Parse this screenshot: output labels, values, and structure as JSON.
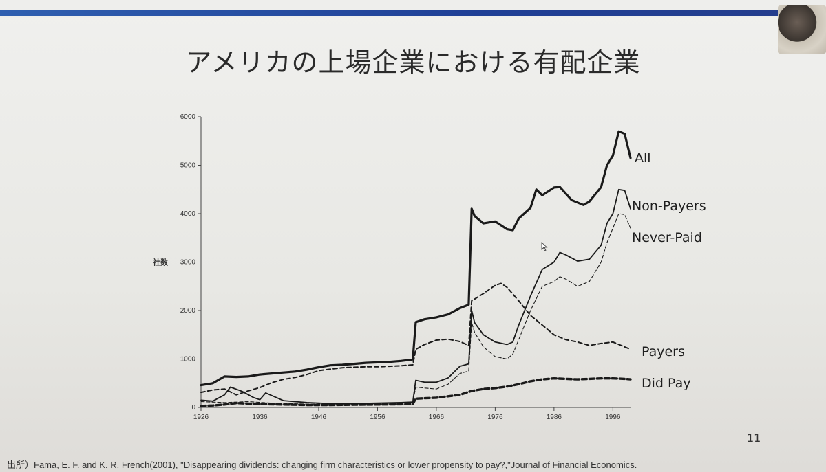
{
  "slide": {
    "title": "アメリカの上場企業における有配企業",
    "page_number": "11",
    "source": "出所）Fama, E. F. and K. R. French(2001), \"Disappearing dividends: changing firm characteristics or lower propensity to pay?,\"Journal of Financial Economics."
  },
  "chart_data": {
    "type": "line",
    "ylabel": "社数",
    "xlabel": "",
    "xlim": [
      1926,
      1999
    ],
    "ylim": [
      0,
      6000
    ],
    "x_ticks": [
      "1926",
      "1936",
      "1946",
      "1956",
      "1966",
      "1976",
      "1986",
      "1996"
    ],
    "y_ticks": [
      "0",
      "1000",
      "2000",
      "3000",
      "4000",
      "5000",
      "6000"
    ],
    "series": [
      {
        "name": "All",
        "style": "solid-thick",
        "x": [
          1926,
          1928,
          1930,
          1932,
          1934,
          1936,
          1938,
          1940,
          1942,
          1944,
          1946,
          1948,
          1950,
          1952,
          1954,
          1956,
          1958,
          1960,
          1962,
          1962.5,
          1964,
          1966,
          1968,
          1970,
          1971.5,
          1972,
          1972.5,
          1974,
          1976,
          1978,
          1979,
          1980,
          1982,
          1983,
          1984,
          1986,
          1987,
          1989,
          1991,
          1992,
          1994,
          1995,
          1996,
          1997,
          1998,
          1999
        ],
        "y": [
          460,
          500,
          640,
          630,
          640,
          680,
          700,
          720,
          740,
          780,
          830,
          870,
          880,
          900,
          920,
          930,
          940,
          960,
          990,
          1760,
          1820,
          1860,
          1920,
          2050,
          2120,
          4100,
          3950,
          3800,
          3840,
          3680,
          3660,
          3900,
          4120,
          4500,
          4380,
          4540,
          4550,
          4280,
          4180,
          4250,
          4550,
          5000,
          5200,
          5700,
          5650,
          5150
        ]
      },
      {
        "name": "Non-Payers",
        "style": "solid-thin",
        "x": [
          1926,
          1928,
          1930,
          1931,
          1933,
          1935,
          1936,
          1937,
          1940,
          1944,
          1948,
          1952,
          1956,
          1960,
          1962,
          1962.5,
          1964,
          1966,
          1968,
          1970,
          1971.5,
          1972,
          1972.5,
          1974,
          1976,
          1978,
          1979,
          1980,
          1982,
          1984,
          1986,
          1987,
          1988,
          1990,
          1992,
          1994,
          1995,
          1996,
          1997,
          1998,
          1999
        ],
        "y": [
          150,
          130,
          260,
          420,
          330,
          200,
          160,
          300,
          140,
          100,
          80,
          80,
          90,
          100,
          110,
          560,
          520,
          520,
          610,
          850,
          900,
          2000,
          1750,
          1500,
          1350,
          1300,
          1350,
          1700,
          2300,
          2850,
          3000,
          3200,
          3150,
          3020,
          3060,
          3350,
          3800,
          4000,
          4500,
          4480,
          4100
        ]
      },
      {
        "name": "Never-Paid",
        "style": "dash-thin",
        "x": [
          1926,
          1930,
          1934,
          1938,
          1944,
          1950,
          1956,
          1960,
          1962,
          1962.5,
          1964,
          1966,
          1968,
          1970,
          1971.5,
          1972,
          1972.5,
          1974,
          1976,
          1978,
          1979,
          1980,
          1982,
          1984,
          1986,
          1987,
          1988,
          1990,
          1992,
          1994,
          1995,
          1996,
          1997,
          1998,
          1999
        ],
        "y": [
          120,
          100,
          120,
          90,
          70,
          70,
          80,
          90,
          100,
          420,
          400,
          380,
          480,
          700,
          750,
          1750,
          1550,
          1250,
          1050,
          1000,
          1100,
          1400,
          2000,
          2500,
          2600,
          2700,
          2650,
          2500,
          2600,
          3000,
          3400,
          3700,
          4000,
          3980,
          3700
        ]
      },
      {
        "name": "Payers",
        "style": "dash-medium",
        "x": [
          1926,
          1928,
          1930,
          1932,
          1934,
          1936,
          1938,
          1940,
          1942,
          1944,
          1946,
          1948,
          1950,
          1952,
          1954,
          1956,
          1958,
          1960,
          1962,
          1962.5,
          1964,
          1966,
          1968,
          1970,
          1971.5,
          1972,
          1974,
          1976,
          1977,
          1978,
          1980,
          1982,
          1984,
          1986,
          1988,
          1990,
          1992,
          1994,
          1996,
          1998,
          1999
        ],
        "y": [
          310,
          360,
          380,
          260,
          340,
          410,
          510,
          580,
          620,
          680,
          760,
          790,
          820,
          830,
          840,
          840,
          850,
          860,
          880,
          1200,
          1300,
          1390,
          1410,
          1360,
          1280,
          2200,
          2350,
          2520,
          2560,
          2480,
          2200,
          1900,
          1700,
          1500,
          1400,
          1350,
          1280,
          1320,
          1350,
          1250,
          1200
        ]
      },
      {
        "name": "Did Pay",
        "style": "dash-thick",
        "x": [
          1926,
          1928,
          1930,
          1932,
          1934,
          1936,
          1940,
          1944,
          1948,
          1952,
          1956,
          1960,
          1962,
          1962.5,
          1964,
          1966,
          1968,
          1970,
          1972,
          1974,
          1976,
          1978,
          1980,
          1982,
          1984,
          1986,
          1988,
          1990,
          1992,
          1994,
          1996,
          1998,
          1999
        ],
        "y": [
          30,
          40,
          60,
          90,
          80,
          70,
          60,
          50,
          50,
          55,
          60,
          65,
          70,
          180,
          190,
          200,
          230,
          260,
          340,
          380,
          400,
          430,
          480,
          540,
          580,
          600,
          590,
          580,
          590,
          600,
          600,
          590,
          580
        ]
      }
    ]
  }
}
